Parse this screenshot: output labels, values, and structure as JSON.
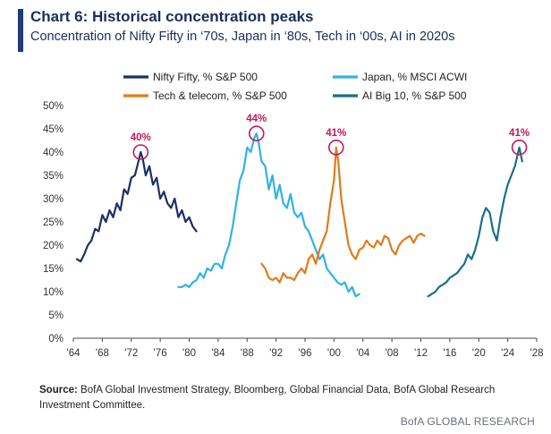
{
  "header": {
    "title": "Chart 6: Historical concentration peaks",
    "subtitle": "Concentration of Nifty Fifty in ‘70s, Japan in ‘80s, Tech in ‘00s, AI in 2020s",
    "accent_color": "#1f3b7a"
  },
  "chart_data": {
    "type": "line",
    "title": "Chart 6: Historical concentration peaks",
    "subtitle": "Concentration of Nifty Fifty in ‘70s, Japan in ‘80s, Tech in ‘00s, AI in 2020s",
    "xlim": [
      1964,
      2028
    ],
    "ylim": [
      0,
      50
    ],
    "x_ticks": [
      "'64",
      "'68",
      "'72",
      "'76",
      "'80",
      "'84",
      "'88",
      "'92",
      "'96",
      "'00",
      "'04",
      "'08",
      "'12",
      "'16",
      "'20",
      "'24",
      "'28"
    ],
    "y_ticks": [
      "0%",
      "5%",
      "10%",
      "15%",
      "20%",
      "25%",
      "30%",
      "35%",
      "40%",
      "45%",
      "50%"
    ],
    "grid": false,
    "legend_position": "top",
    "series": [
      {
        "name": "Nifty Fifty, % S&P 500",
        "color": "#1b2f6b",
        "x": [
          1964.5,
          1965.0,
          1965.5,
          1966.0,
          1966.5,
          1967.0,
          1967.5,
          1968.0,
          1968.5,
          1969.0,
          1969.5,
          1970.0,
          1970.5,
          1971.0,
          1971.5,
          1972.0,
          1972.5,
          1973.0,
          1973.3,
          1973.6,
          1974.0,
          1974.5,
          1975.0,
          1975.5,
          1976.0,
          1976.5,
          1977.0,
          1977.5,
          1978.0,
          1978.5,
          1979.0,
          1979.5,
          1980.0,
          1980.5,
          1981.0
        ],
        "y": [
          17,
          16.5,
          18,
          20,
          21,
          23.5,
          23,
          26.5,
          25,
          27.5,
          26,
          29,
          27.5,
          32,
          31,
          34.5,
          35,
          38,
          40,
          38.5,
          35,
          37,
          33,
          34.5,
          30,
          31.5,
          29,
          28,
          30,
          26,
          27.5,
          25,
          26,
          24,
          23
        ]
      },
      {
        "name": "Japan, % MSCI ACWI",
        "color": "#2fb3e3",
        "x": [
          1978.5,
          1979.0,
          1979.5,
          1980.0,
          1980.5,
          1981.0,
          1981.5,
          1982.0,
          1982.5,
          1983.0,
          1983.5,
          1984.0,
          1984.5,
          1985.0,
          1985.5,
          1986.0,
          1986.5,
          1987.0,
          1987.5,
          1988.0,
          1988.5,
          1989.0,
          1989.3,
          1989.6,
          1990.0,
          1990.5,
          1991.0,
          1991.5,
          1992.0,
          1992.5,
          1993.0,
          1993.5,
          1994.0,
          1994.5,
          1995.0,
          1995.5,
          1996.0,
          1996.5,
          1997.0,
          1997.5,
          1998.0,
          1998.5,
          1999.0,
          1999.5,
          2000.0,
          2000.5,
          2001.0,
          2001.5,
          2002.0,
          2002.5,
          2003.0,
          2003.5
        ],
        "y": [
          11,
          11,
          11.5,
          11,
          12,
          12.5,
          14,
          13,
          15,
          14.5,
          16,
          16,
          15,
          18,
          20,
          24,
          29,
          34,
          36,
          41,
          40,
          43,
          44,
          42,
          38,
          37,
          32,
          35,
          30,
          33,
          29,
          28,
          31,
          27,
          26,
          27,
          24,
          23,
          21,
          19,
          17,
          18,
          15,
          14,
          13,
          12,
          11.5,
          12,
          10,
          11,
          9,
          9.5
        ]
      },
      {
        "name": "Tech & telecom, % S&P 500",
        "color": "#e07b1a",
        "x": [
          1990.0,
          1990.5,
          1991.0,
          1991.5,
          1992.0,
          1992.5,
          1993.0,
          1993.5,
          1994.0,
          1994.5,
          1995.0,
          1995.5,
          1996.0,
          1996.5,
          1997.0,
          1997.5,
          1998.0,
          1998.5,
          1999.0,
          1999.5,
          2000.0,
          2000.3,
          2000.6,
          2001.0,
          2001.5,
          2002.0,
          2002.5,
          2003.0,
          2003.5,
          2004.0,
          2004.5,
          2005.0,
          2005.5,
          2006.0,
          2006.5,
          2007.0,
          2007.5,
          2008.0,
          2008.5,
          2009.0,
          2009.5,
          2010.0,
          2010.5,
          2011.0,
          2011.5,
          2012.0,
          2012.5
        ],
        "y": [
          16,
          15,
          13,
          12.5,
          13,
          12,
          14,
          13,
          13,
          12.5,
          14,
          15,
          14,
          17,
          18,
          16,
          19,
          21,
          23,
          29,
          34,
          41,
          38,
          30,
          25,
          20,
          18,
          17,
          19,
          19.5,
          21,
          20,
          19.5,
          21,
          20,
          22,
          21.5,
          19,
          18,
          20,
          21,
          21.5,
          22,
          20.5,
          22,
          22.5,
          22
        ]
      },
      {
        "name": "AI Big 10, % S&P 500",
        "color": "#1a6f8a",
        "x": [
          2013.0,
          2013.5,
          2014.0,
          2014.5,
          2015.0,
          2015.5,
          2016.0,
          2016.5,
          2017.0,
          2017.5,
          2018.0,
          2018.5,
          2019.0,
          2019.5,
          2020.0,
          2020.5,
          2021.0,
          2021.5,
          2022.0,
          2022.5,
          2023.0,
          2023.5,
          2024.0,
          2024.5,
          2025.0,
          2025.3,
          2025.6,
          2026.0
        ],
        "y": [
          9,
          9.5,
          10,
          11,
          11.5,
          12,
          13,
          13.5,
          14,
          15,
          16,
          18,
          17,
          19,
          22,
          26,
          28,
          27,
          23,
          21,
          26,
          30,
          33,
          35,
          37,
          39,
          41,
          38
        ]
      }
    ],
    "annotations": [
      {
        "label": "40%",
        "x": 1973.3,
        "y": 40
      },
      {
        "label": "44%",
        "x": 1989.3,
        "y": 44
      },
      {
        "label": "41%",
        "x": 2000.3,
        "y": 41
      },
      {
        "label": "41%",
        "x": 2025.6,
        "y": 41
      }
    ],
    "annotation_color": "#c2185b"
  },
  "source": {
    "label": "Source:",
    "text": " BofA Global Investment Strategy, Bloomberg, Global Financial Data, BofA Global Research Investment Committee."
  },
  "footer": {
    "brand": "BofA GLOBAL RESEARCH"
  }
}
